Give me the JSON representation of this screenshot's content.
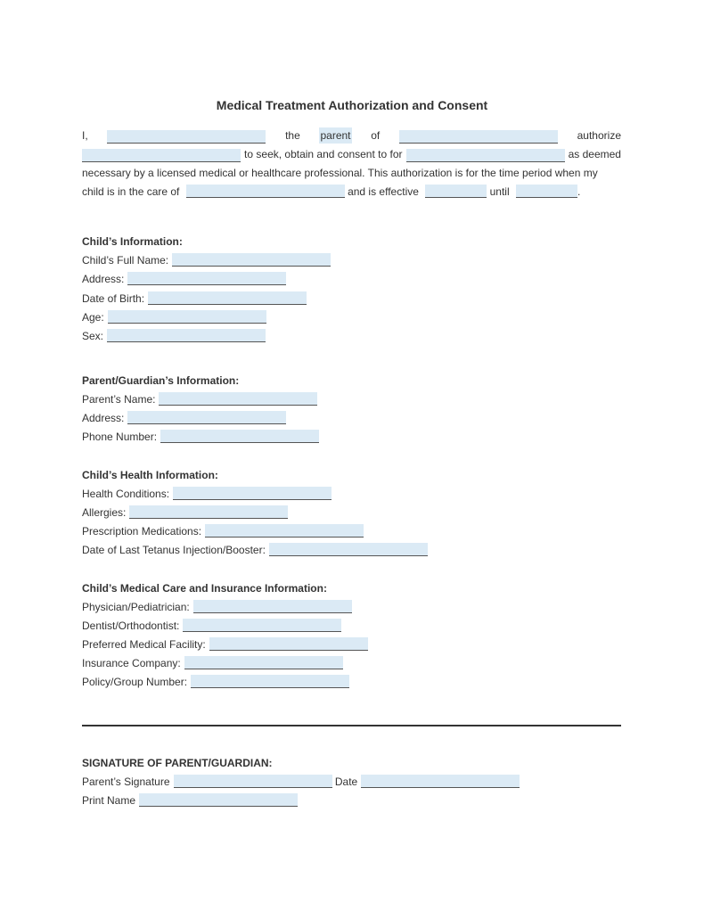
{
  "title": "Medical Treatment Authorization and Consent",
  "intro": {
    "l1": [
      "I,",
      "the",
      "parent",
      "of",
      "authorize"
    ],
    "l2": [
      "to seek, obtain and consent to for",
      "as deemed"
    ],
    "l3": "necessary by a licensed medical or healthcare professional. This authorization is for the time period when my",
    "l4": [
      "child is in the care of",
      "and is effective",
      "until",
      "."
    ]
  },
  "child": {
    "heading": "Child’s Information:",
    "fields": [
      "Child’s Full Name:",
      "Address:",
      "Date of Birth:",
      "Age:",
      "Sex:"
    ]
  },
  "parent": {
    "heading": "Parent/Guardian’s Information:",
    "fields": [
      "Parent’s Name:",
      "Address:",
      "Phone Number:"
    ]
  },
  "health": {
    "heading": "Child’s Health Information:",
    "fields": [
      "Health Conditions:",
      "Allergies:",
      "Prescription Medications:",
      "Date of Last Tetanus Injection/Booster:"
    ]
  },
  "care": {
    "heading": "Child’s Medical Care and Insurance Information:",
    "fields": [
      "Physician/Pediatrician:",
      "Dentist/Orthodontist:",
      "Preferred Medical Facility:",
      "Insurance Company:",
      "Policy/Group Number:"
    ]
  },
  "signature": {
    "heading": "SIGNATURE OF PARENT/GUARDIAN:",
    "sig_label": "Parent’s Signature",
    "date_label": "Date",
    "print_label": "Print Name"
  }
}
